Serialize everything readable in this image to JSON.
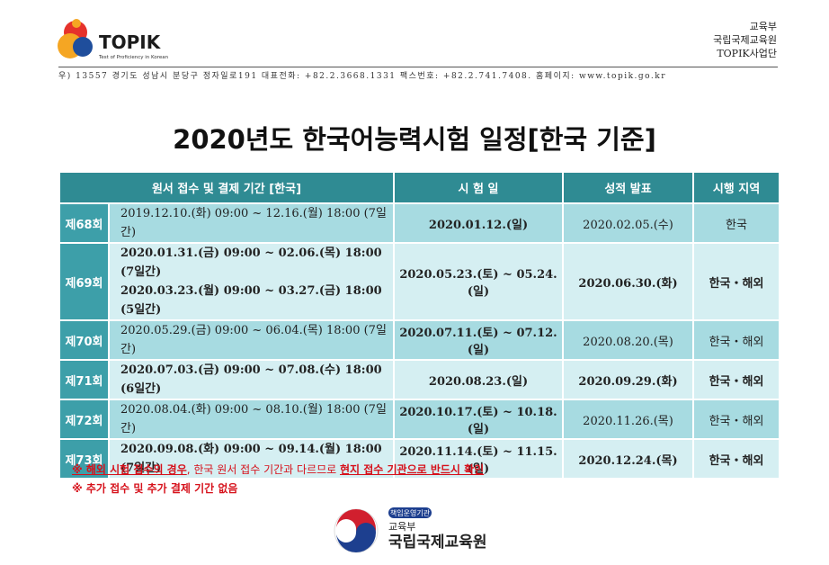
{
  "header": {
    "logo_text": "TOPIK",
    "logo_tagline": "Test of Proficiency in Korean",
    "org_lines": [
      "교육부",
      "국립국제교육원",
      "TOPIK사업단"
    ],
    "address": "우) 13557   경기도 성남시 분당구 정자일로191   대표전화: +82.2.3668.1331   팩스번호: +82.2.741.7408.   홈페이지: www.topik.go.kr"
  },
  "title": "2020년도 한국어능력시험 일정[한국 기준]",
  "table": {
    "columns": [
      "원서 접수 및 결제 기간 [한국]",
      "시 험 일",
      "성적 발표",
      "시행 지역"
    ],
    "rows": [
      {
        "round": "제68회",
        "application": [
          "2019.12.10.(화) 09:00 ~ 12.16.(월) 18:00 (7일간)"
        ],
        "exam": "2020.01.12.(일)",
        "results": "2020.02.05.(수)",
        "region": "한국"
      },
      {
        "round": "제69회",
        "application": [
          "2020.01.31.(금) 09:00 ~ 02.06.(목) 18:00 (7일간)",
          "2020.03.23.(월) 09:00 ~ 03.27.(금) 18:00 (5일간)"
        ],
        "exam": "2020.05.23.(토) ~ 05.24.(일)",
        "results": "2020.06.30.(화)",
        "region": "한국・해외"
      },
      {
        "round": "제70회",
        "application": [
          "2020.05.29.(금) 09:00 ~ 06.04.(목) 18:00 (7일간)"
        ],
        "exam": "2020.07.11.(토) ~ 07.12.(일)",
        "results": "2020.08.20.(목)",
        "region": "한국・해외"
      },
      {
        "round": "제71회",
        "application": [
          "2020.07.03.(금) 09:00 ~ 07.08.(수) 18:00 (6일간)"
        ],
        "exam": "2020.08.23.(일)",
        "results": "2020.09.29.(화)",
        "region": "한국・해외"
      },
      {
        "round": "제72회",
        "application": [
          "2020.08.04.(화) 09:00 ~ 08.10.(월) 18:00 (7일간)"
        ],
        "exam": "2020.10.17.(토) ~ 10.18.(일)",
        "results": "2020.11.26.(목)",
        "region": "한국・해외"
      },
      {
        "round": "제73회",
        "application": [
          "2020.09.08.(화) 09:00 ~ 09.14.(월) 18:00 (7일간)"
        ],
        "exam": "2020.11.14.(토) ~ 11.15.(일)",
        "results": "2020.12.24.(목)",
        "region": "한국・해외"
      }
    ]
  },
  "notes": [
    [
      "※ 해외 시험 접수의 경우",
      ", 한국 원서 접수 기간과 다르므로 ",
      "현지 접수 기관으로 반드시 확인"
    ],
    [
      "※ 추가 접수 및 추가 결제 기간 없음"
    ]
  ],
  "footer": {
    "badge": "책임운영기관",
    "ministry": "교육부",
    "institute": "국립국제교육원"
  }
}
